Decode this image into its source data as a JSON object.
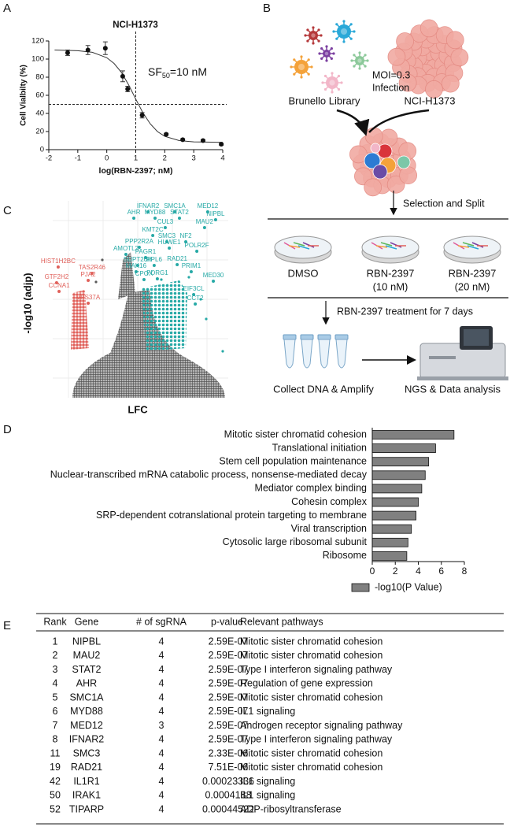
{
  "panels": [
    "A",
    "B",
    "C",
    "D",
    "E"
  ],
  "chart_data": [
    {
      "type": "dose_response",
      "title": "NCI-H1373",
      "xlabel": "log(RBN-2397; nM)",
      "ylabel": "Cell Vialbilty (%)",
      "x": [
        -1.35,
        -0.65,
        -0.05,
        0.55,
        0.72,
        1.22,
        2.05,
        2.62,
        3.32,
        3.95
      ],
      "values": [
        107,
        110,
        112,
        81,
        67,
        38,
        17,
        11,
        10,
        6
      ],
      "errors": [
        3,
        5,
        7,
        6,
        3,
        3,
        1,
        1,
        1,
        1
      ],
      "fit_x": [
        -1.8,
        -1,
        -0.5,
        0,
        0.25,
        0.5,
        0.75,
        1,
        1.25,
        1.5,
        1.75,
        2,
        2.5,
        3,
        4
      ],
      "fit_y": [
        110,
        109.2,
        107.5,
        101.5,
        95.2,
        85.5,
        71.7,
        55.8,
        40.5,
        28.5,
        19.9,
        14.7,
        10,
        8.6,
        8
      ],
      "xlim": [
        -2,
        4
      ],
      "xticks": [
        -2,
        -1,
        0,
        1,
        2,
        3,
        4
      ],
      "ylim": [
        0,
        120
      ],
      "yticks": [
        0,
        20,
        40,
        60,
        80,
        100,
        120
      ],
      "vline": 1,
      "hline": 50,
      "annotation": {
        "text": "SF",
        "subscript": "50",
        "suffix": "=10 nM"
      },
      "color": "#111111"
    },
    {
      "type": "volcano",
      "xlabel": "LFC",
      "ylabel": "-log10 (adjp)",
      "xlim": [
        0,
        100
      ],
      "ylim": [
        0,
        100
      ],
      "genes": [
        {
          "name": "IFNAR2",
          "x": 54.3,
          "y": 94.4,
          "color": "#26a9a6"
        },
        {
          "name": "SMC1A",
          "x": 69.5,
          "y": 94.4,
          "color": "#26a9a6"
        },
        {
          "name": "MED12",
          "x": 88.3,
          "y": 94.4,
          "color": "#26a9a6"
        },
        {
          "name": "AHR",
          "x": 46.2,
          "y": 91.2,
          "color": "#26a9a6"
        },
        {
          "name": "MYD88",
          "x": 58.3,
          "y": 91.2,
          "color": "#26a9a6"
        },
        {
          "name": "STAT2",
          "x": 72.2,
          "y": 91.2,
          "color": "#26a9a6"
        },
        {
          "name": "NIPBL",
          "x": 92.8,
          "y": 90.4,
          "color": "#26a9a6"
        },
        {
          "name": "MAU2",
          "x": 86.5,
          "y": 86.4,
          "color": "#26a9a6"
        },
        {
          "name": "CUL3",
          "x": 64.1,
          "y": 86.4,
          "color": "#26a9a6"
        },
        {
          "name": "KMT2C",
          "x": 57.0,
          "y": 82.4,
          "color": "#26a9a6"
        },
        {
          "name": "SMC3",
          "x": 65.0,
          "y": 79.2,
          "color": "#26a9a6"
        },
        {
          "name": "NF2",
          "x": 75.8,
          "y": 79.2,
          "color": "#26a9a6"
        },
        {
          "name": "PPP2R2A",
          "x": 49.3,
          "y": 76.4,
          "color": "#26a9a6"
        },
        {
          "name": "HUWE1",
          "x": 66.4,
          "y": 76.0,
          "color": "#26a9a6"
        },
        {
          "name": "POLR2F",
          "x": 82.1,
          "y": 74.4,
          "color": "#26a9a6"
        },
        {
          "name": "AMOTL2",
          "x": 41.7,
          "y": 72.8,
          "color": "#26a9a6"
        },
        {
          "name": "PAGR1",
          "x": 52.9,
          "y": 71.2,
          "color": "#26a9a6"
        },
        {
          "name": "RAD21",
          "x": 70.9,
          "y": 67.6,
          "color": "#26a9a6"
        },
        {
          "name": "SUPT20H",
          "x": 48.4,
          "y": 67.2,
          "color": "#26a9a6"
        },
        {
          "name": "RPL6",
          "x": 57.8,
          "y": 67.2,
          "color": "#26a9a6"
        },
        {
          "name": "PRIM1",
          "x": 78.9,
          "y": 64.0,
          "color": "#26a9a6"
        },
        {
          "name": "MAK16",
          "x": 47.5,
          "y": 64.0,
          "color": "#26a9a6"
        },
        {
          "name": "PDRG1",
          "x": 59.6,
          "y": 60.4,
          "color": "#26a9a6"
        },
        {
          "name": "MED30",
          "x": 91.5,
          "y": 59.2,
          "color": "#26a9a6"
        },
        {
          "name": "CPOX",
          "x": 52.0,
          "y": 60.0,
          "color": "#26a9a6"
        },
        {
          "name": "EIF3CL",
          "x": 80.3,
          "y": 52.4,
          "color": "#26a9a6"
        },
        {
          "name": "CCT2",
          "x": 81.2,
          "y": 47.6,
          "color": "#26a9a6"
        },
        {
          "name": "HIST1H2BC",
          "x": 3.1,
          "y": 66.4,
          "color": "#e0605a"
        },
        {
          "name": "TAS2R46",
          "x": 22.4,
          "y": 63.2,
          "color": "#e0605a"
        },
        {
          "name": "GTF2H2",
          "x": 2.2,
          "y": 58.4,
          "color": "#e0605a"
        },
        {
          "name": "PJA2",
          "x": 20.2,
          "y": 59.6,
          "color": "#e0605a"
        },
        {
          "name": "CCNA1",
          "x": 3.6,
          "y": 54.0,
          "color": "#e0605a"
        },
        {
          "name": "VPS37A",
          "x": 20.2,
          "y": 48.0,
          "color": "#e0605a"
        }
      ]
    },
    {
      "type": "hbar",
      "categories": [
        "Mitotic sister chromatid cohesion",
        "Translational initiation",
        "Stem cell population maintenance",
        "Nuclear-transcribed mRNA catabolic process, nonsense-mediated decay",
        "Mediator complex binding",
        "Cohesin complex",
        "SRP-dependent cotranslational protein targeting to membrane",
        "Viral transcription",
        "Cytosolic large ribosomal subunit",
        "Ribosome"
      ],
      "values": [
        7.1,
        5.5,
        4.9,
        4.6,
        4.3,
        4.0,
        3.8,
        3.4,
        3.1,
        3.0
      ],
      "xlim": [
        0,
        8
      ],
      "xticks": [
        0,
        2,
        4,
        6,
        8
      ],
      "legend": "-log10(P Value)",
      "color": "#808080"
    }
  ],
  "diagram": {
    "library": "Brunello Library",
    "moi": "MOI=0.3",
    "infection": "Infection",
    "cell_line": "NCI-H1373",
    "split": "Selection and Split",
    "dishes": [
      {
        "name": "DMSO"
      },
      {
        "name": "RBN-2397",
        "dose": "(10 nM)"
      },
      {
        "name": "RBN-2397",
        "dose": "(20 nM)"
      }
    ],
    "treatment": "RBN-2397 treatment for 7 days",
    "collect": "Collect DNA & Amplify",
    "ngs": "NGS & Data analysis"
  },
  "table": {
    "columns": [
      "Rank",
      "Gene",
      "# of sgRNA",
      "p-value",
      "Relevant pathways"
    ],
    "rows": [
      [
        "1",
        "NIPBL",
        "4",
        "2.59E-07",
        "Mitotic sister chromatid cohesion"
      ],
      [
        "2",
        "MAU2",
        "4",
        "2.59E-07",
        "Mitotic sister chromatid cohesion"
      ],
      [
        "3",
        "STAT2",
        "4",
        "2.59E-07",
        "Type I interferon signaling pathway"
      ],
      [
        "4",
        "AHR",
        "4",
        "2.59E-07",
        "Regulation of gene expression"
      ],
      [
        "5",
        "SMC1A",
        "4",
        "2.59E-07",
        "Mitotic sister chromatid cohesion"
      ],
      [
        "6",
        "MYD88",
        "4",
        "2.59E-07",
        "IL1 signaling"
      ],
      [
        "7",
        "MED12",
        "3",
        "2.59E-07",
        "Androgen receptor signaling pathway"
      ],
      [
        "8",
        "IFNAR2",
        "4",
        "2.59E-07",
        "Type I interferon signaling pathway"
      ],
      [
        "11",
        "SMC3",
        "4",
        "2.33E-06",
        "Mitotic sister chromatid cohesion"
      ],
      [
        "19",
        "RAD21",
        "4",
        "7.51E-06",
        "Mitotic sister chromatid cohesion"
      ],
      [
        "42",
        "IL1R1",
        "4",
        "0.00023336",
        "IL1 signaling"
      ],
      [
        "50",
        "IRAK1",
        "4",
        "0.0004188",
        "IL1 signaling"
      ],
      [
        "52",
        "TIPARP",
        "4",
        "0.00044522",
        "ADP-ribosyltransferase"
      ]
    ]
  }
}
